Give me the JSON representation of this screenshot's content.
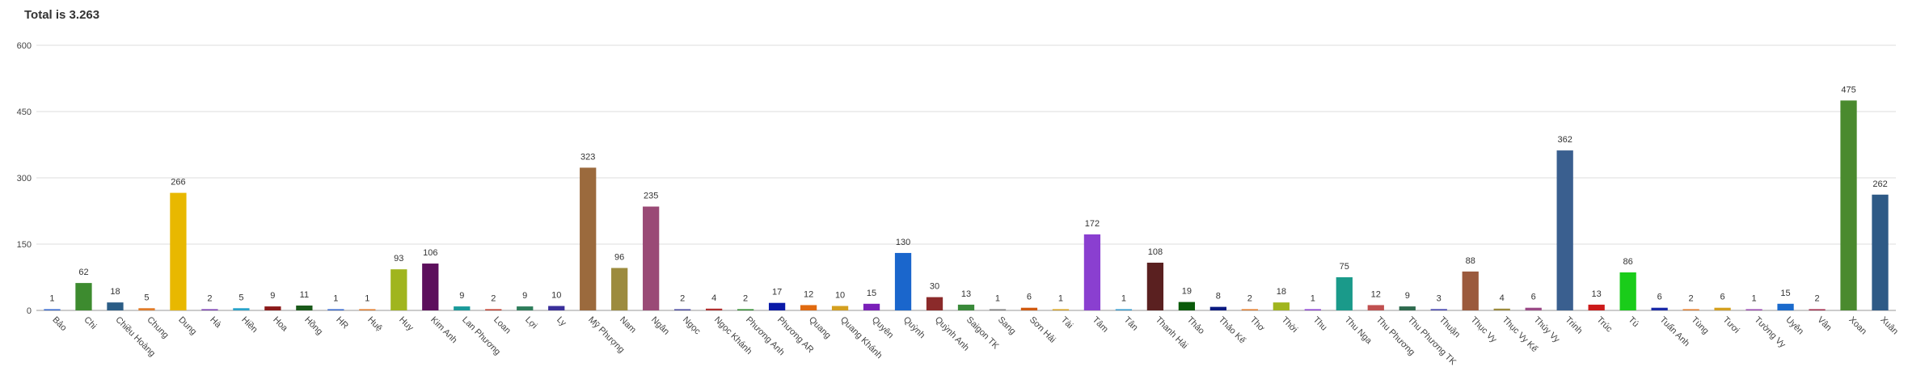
{
  "chart_data": {
    "type": "bar",
    "title": "Total is 3.263",
    "xlabel": "",
    "ylabel": "",
    "ylim": [
      0,
      600
    ],
    "yticks": [
      0,
      150,
      300,
      450,
      600
    ],
    "grid": true,
    "legend": "none",
    "categories": [
      "Bảo",
      "Chi",
      "Chiều Hoàng",
      "Chung",
      "Dung",
      "Hà",
      "Hiền",
      "Hoa",
      "Hồng",
      "HR",
      "Huệ",
      "Huy",
      "Kim Anh",
      "Lan Phương",
      "Loan",
      "Lợi",
      "Ly",
      "Mỹ Phượng",
      "Nam",
      "Ngân",
      "Ngọc",
      "Ngọc Khánh",
      "Phương Anh",
      "Phương AR",
      "Quang",
      "Quang Khánh",
      "Quyên",
      "Quỳnh",
      "Quỳnh Anh",
      "Saigon TK",
      "Sang",
      "Sơn Hải",
      "Tài",
      "Tâm",
      "Tân",
      "Thanh Hải",
      "Thảo",
      "Thảo Kế",
      "Thơ",
      "Thời",
      "Thu",
      "Thu Nga",
      "Thu Phương",
      "Thu Phương TK",
      "Thuận",
      "Thục Vy",
      "Thục Vy Kế",
      "Thúy Vy",
      "Trinh",
      "Trúc",
      "Tú",
      "Tuấn Anh",
      "Tùng",
      "Tươi",
      "Tường Vy",
      "Uyên",
      "Vân",
      "Xoan",
      "Xuân"
    ],
    "values": [
      1,
      62,
      18,
      5,
      266,
      2,
      5,
      9,
      11,
      1,
      1,
      93,
      106,
      9,
      2,
      9,
      10,
      323,
      96,
      235,
      2,
      4,
      2,
      17,
      12,
      10,
      15,
      130,
      30,
      13,
      1,
      6,
      1,
      172,
      1,
      108,
      19,
      8,
      2,
      18,
      1,
      75,
      12,
      9,
      3,
      88,
      4,
      6,
      362,
      13,
      86,
      6,
      2,
      6,
      1,
      15,
      2,
      475,
      262
    ],
    "colors": [
      "#3366cc",
      "#3d8b2f",
      "#2b5d86",
      "#e07b2a",
      "#e8b800",
      "#7a3db0",
      "#29a3c9",
      "#8b1a1a",
      "#1a5a1a",
      "#3366cc",
      "#e07b2a",
      "#a0b51e",
      "#5c0f5c",
      "#1a9a9a",
      "#c0392b",
      "#2e7d5b",
      "#3a2f9a",
      "#9b6a3d",
      "#9c8b3e",
      "#9a4a76",
      "#4a4aa0",
      "#b03030",
      "#2e8b2e",
      "#0a1aa8",
      "#e06a10",
      "#d4a020",
      "#7a20b8",
      "#1a66cc",
      "#8b2a2a",
      "#3a8a3a",
      "#7f7f7f",
      "#d05a10",
      "#d4a020",
      "#8a3fd0",
      "#3399cc",
      "#5a2020",
      "#0a5a0a",
      "#0a1a80",
      "#e07b2a",
      "#a0b51e",
      "#8a3fd0",
      "#1a9a8a",
      "#c05050",
      "#2e6a4e",
      "#4a4ab0",
      "#9b5a3d",
      "#9c8b3e",
      "#9a4a86",
      "#3a5f8f",
      "#cc1a1a",
      "#1acc1a",
      "#1a2aa8",
      "#e07b2a",
      "#d4a020",
      "#9a4ab0",
      "#1a6acc",
      "#a02a4a",
      "#4a8a2e",
      "#2e5a86"
    ]
  }
}
